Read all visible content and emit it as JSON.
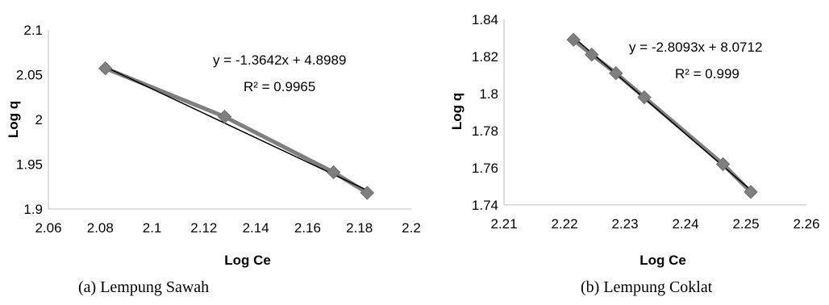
{
  "chart_data": [
    {
      "type": "scatter",
      "caption": "(a)  Lempung Sawah",
      "xlabel": "Log Ce",
      "ylabel": "Log q",
      "xlim": [
        2.06,
        2.2
      ],
      "ylim": [
        1.9,
        2.1
      ],
      "xticks": [
        "2.06",
        "2.08",
        "2.1",
        "2.12",
        "2.14",
        "2.16",
        "2.18",
        "2.2"
      ],
      "yticks": [
        "1.9",
        "1.95",
        "2",
        "2.05",
        "2.1"
      ],
      "series": [
        {
          "x": [
            2.082,
            2.128,
            2.17,
            2.183
          ],
          "y": [
            2.057,
            2.003,
            1.941,
            1.918
          ],
          "color": "#7f7f7f"
        }
      ],
      "trendline": {
        "slope": -1.3642,
        "intercept": 4.8989,
        "color": "#000000"
      },
      "equation": "y = -1.3642x + 4.8989",
      "r2": "R² = 0.9965"
    },
    {
      "type": "scatter",
      "caption": "(b) Lempung Coklat",
      "xlabel": "Log Ce",
      "ylabel": "Log q",
      "xlim": [
        2.21,
        2.26
      ],
      "ylim": [
        1.74,
        1.84
      ],
      "xticks": [
        "2.21",
        "2.22",
        "2.23",
        "2.24",
        "2.25",
        "2.26"
      ],
      "yticks": [
        "1.74",
        "1.76",
        "1.78",
        "1.8",
        "1.82",
        "1.84"
      ],
      "series": [
        {
          "x": [
            2.2215,
            2.2245,
            2.2285,
            2.2332,
            2.2462,
            2.2508
          ],
          "y": [
            1.829,
            1.821,
            1.811,
            1.798,
            1.762,
            1.747
          ],
          "color": "#7f7f7f"
        }
      ],
      "trendline": {
        "slope": -2.8093,
        "intercept": 8.0712,
        "color": "#000000"
      },
      "equation": "y = -2.8093x + 8.0712",
      "r2": "R² = 0.999"
    }
  ]
}
